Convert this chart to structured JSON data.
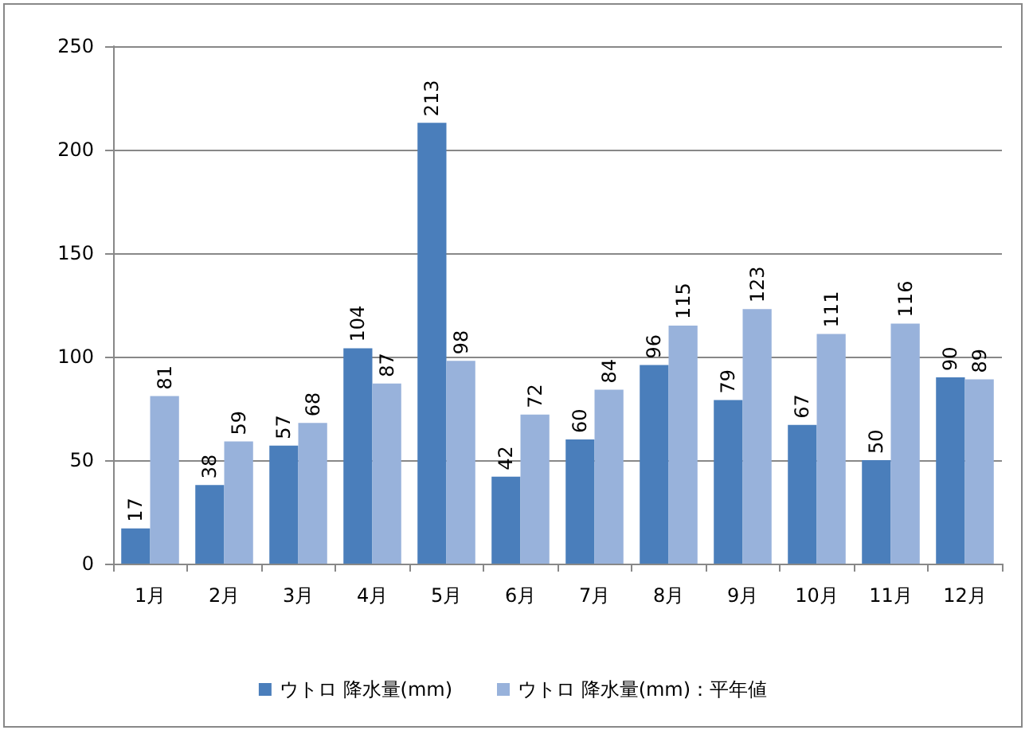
{
  "chart_data": {
    "type": "bar",
    "categories": [
      "1月",
      "2月",
      "3月",
      "4月",
      "5月",
      "6月",
      "7月",
      "8月",
      "9月",
      "10月",
      "11月",
      "12月"
    ],
    "series": [
      {
        "name": "ウトロ 降水量(mm)",
        "color": "#4a7ebb",
        "values": [
          17,
          38,
          57,
          104,
          213,
          42,
          60,
          96,
          79,
          67,
          50,
          90
        ]
      },
      {
        "name": "ウトロ 降水量(mm)：平年値",
        "color": "#98b2db",
        "values": [
          81,
          59,
          68,
          87,
          98,
          72,
          84,
          115,
          123,
          111,
          116,
          89
        ]
      }
    ],
    "ylim": [
      0,
      250
    ],
    "yticks": [
      0,
      50,
      100,
      150,
      200,
      250
    ],
    "grid": "y",
    "legend": "bottom",
    "data_labels": true
  }
}
